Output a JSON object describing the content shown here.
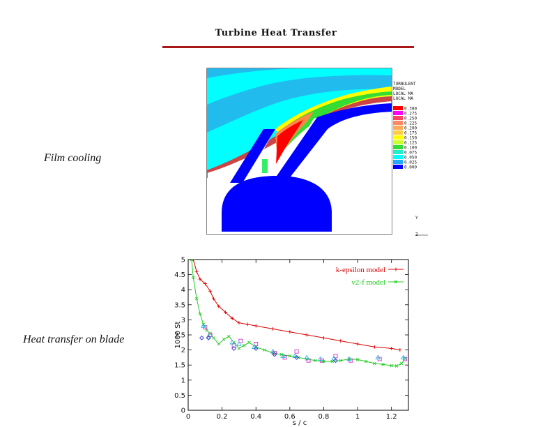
{
  "page": {
    "title": "Turbine Heat Transfer",
    "label_top": "Film cooling",
    "label_bottom": "Heat transfer on blade"
  },
  "contour_legend": {
    "header_lines": [
      "TURBULENT",
      "MODEL",
      "LOCAL MA",
      "LOCAL MA"
    ],
    "levels": [
      "0.300",
      "0.275",
      "0.250",
      "0.225",
      "0.200",
      "0.175",
      "0.150",
      "0.125",
      "0.100",
      "0.075",
      "0.050",
      "0.025",
      "0.000"
    ],
    "colors": [
      "#ff0000",
      "#ff00ff",
      "#ff4466",
      "#ff8866",
      "#ffaa55",
      "#ffcc44",
      "#ffff00",
      "#ccff33",
      "#33dd33",
      "#22eecc",
      "#00ffff",
      "#22aaff",
      "#0000ff"
    ]
  },
  "chart_data": {
    "type": "line",
    "xlabel": "s / c",
    "ylabel": "1000 St",
    "xlim": [
      0,
      1.3
    ],
    "ylim": [
      0,
      5
    ],
    "xticks": [
      "0",
      "0.2",
      "0.4",
      "0.6",
      "0.8",
      "1",
      "1.2"
    ],
    "yticks": [
      "0",
      "0.5",
      "1",
      "1.5",
      "2",
      "2.5",
      "3",
      "3.5",
      "4",
      "4.5",
      "5"
    ],
    "legend_position": "top-right",
    "series": [
      {
        "name": "k-epsilon model",
        "color": "#dd0000",
        "marker": "+",
        "x": [
          0.03,
          0.05,
          0.07,
          0.1,
          0.13,
          0.15,
          0.18,
          0.22,
          0.26,
          0.3,
          0.35,
          0.4,
          0.5,
          0.6,
          0.7,
          0.8,
          0.9,
          1.0,
          1.1,
          1.2,
          1.25
        ],
        "y": [
          5.0,
          4.6,
          4.35,
          4.2,
          3.95,
          3.7,
          3.45,
          3.25,
          3.05,
          2.9,
          2.85,
          2.8,
          2.7,
          2.6,
          2.5,
          2.4,
          2.3,
          2.2,
          2.1,
          2.05,
          2.0
        ]
      },
      {
        "name": "v2-f model",
        "color": "#22cc22",
        "marker": "x",
        "x": [
          0.02,
          0.03,
          0.05,
          0.07,
          0.09,
          0.11,
          0.13,
          0.15,
          0.18,
          0.21,
          0.24,
          0.27,
          0.3,
          0.33,
          0.36,
          0.4,
          0.45,
          0.5,
          0.55,
          0.6,
          0.65,
          0.7,
          0.75,
          0.8,
          0.85,
          0.9,
          0.95,
          1.0,
          1.05,
          1.1,
          1.15,
          1.2,
          1.23,
          1.26,
          1.28
        ],
        "y": [
          5.0,
          4.4,
          3.7,
          3.2,
          2.85,
          2.65,
          2.55,
          2.4,
          2.2,
          2.35,
          2.45,
          2.25,
          2.05,
          2.15,
          2.25,
          2.1,
          2.0,
          1.9,
          1.85,
          1.8,
          1.75,
          1.7,
          1.65,
          1.62,
          1.62,
          1.65,
          1.7,
          1.68,
          1.62,
          1.55,
          1.52,
          1.48,
          1.47,
          1.55,
          1.72
        ]
      }
    ],
    "experimental_points": [
      {
        "marker": "square",
        "color": "#cc33cc",
        "x": [
          0.1,
          0.13,
          0.27,
          0.31,
          0.4,
          0.51,
          0.57,
          0.64,
          0.71,
          0.79,
          0.87,
          0.96,
          1.13,
          1.28
        ],
        "y": [
          2.75,
          2.5,
          2.15,
          2.3,
          2.2,
          1.9,
          1.75,
          1.95,
          1.65,
          1.65,
          1.8,
          1.65,
          1.7,
          1.7
        ]
      },
      {
        "marker": "triangle",
        "color": "#22bbdd",
        "x": [
          0.09,
          0.12,
          0.26,
          0.3,
          0.39,
          0.5,
          0.56,
          0.63,
          0.7,
          0.78,
          0.86,
          0.95,
          1.12,
          1.27
        ],
        "y": [
          2.8,
          2.45,
          2.25,
          2.2,
          2.1,
          1.95,
          1.8,
          1.8,
          1.75,
          1.7,
          1.72,
          1.7,
          1.75,
          1.75
        ]
      },
      {
        "marker": "diamond",
        "color": "#3333cc",
        "x": [
          0.08,
          0.12,
          0.27,
          0.4,
          0.51,
          0.64,
          0.87
        ],
        "y": [
          2.4,
          2.4,
          2.05,
          2.05,
          1.85,
          1.75,
          1.65
        ]
      }
    ]
  }
}
